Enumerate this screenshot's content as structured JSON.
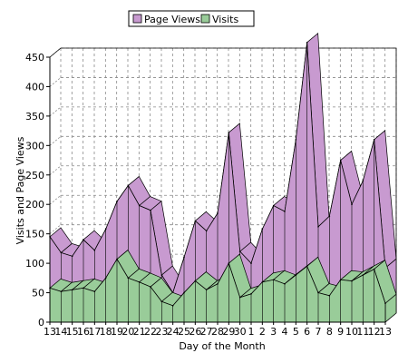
{
  "chart_data": {
    "type": "area",
    "title": "",
    "xlabel": "Day of the Month",
    "ylabel": "Visits and Page Views",
    "ylim": [
      0,
      450
    ],
    "yticks": [
      0,
      50,
      100,
      150,
      200,
      250,
      300,
      350,
      400,
      450
    ],
    "grid": true,
    "legend_position": "top-center",
    "categories": [
      "13",
      "14",
      "15",
      "16",
      "17",
      "18",
      "19",
      "20",
      "21",
      "22",
      "23",
      "24",
      "25",
      "26",
      "27",
      "28",
      "29",
      "30",
      "1",
      "2",
      "3",
      "4",
      "5",
      "6",
      "7",
      "8",
      "9",
      "10",
      "11",
      "12",
      "13"
    ],
    "series": [
      {
        "name": "Page Views",
        "color": "#c89ad0",
        "values": [
          145,
          118,
          112,
          140,
          122,
          158,
          205,
          232,
          198,
          190,
          80,
          50,
          110,
          172,
          155,
          185,
          322,
          120,
          100,
          158,
          198,
          188,
          310,
          475,
          162,
          180,
          275,
          200,
          240,
          310,
          92
        ]
      },
      {
        "name": "Visits",
        "color": "#99cc99",
        "values": [
          58,
          52,
          55,
          58,
          52,
          75,
          107,
          75,
          68,
          60,
          35,
          28,
          50,
          70,
          55,
          65,
          100,
          42,
          48,
          68,
          72,
          65,
          80,
          95,
          50,
          45,
          72,
          70,
          80,
          90,
          32
        ]
      }
    ]
  }
}
